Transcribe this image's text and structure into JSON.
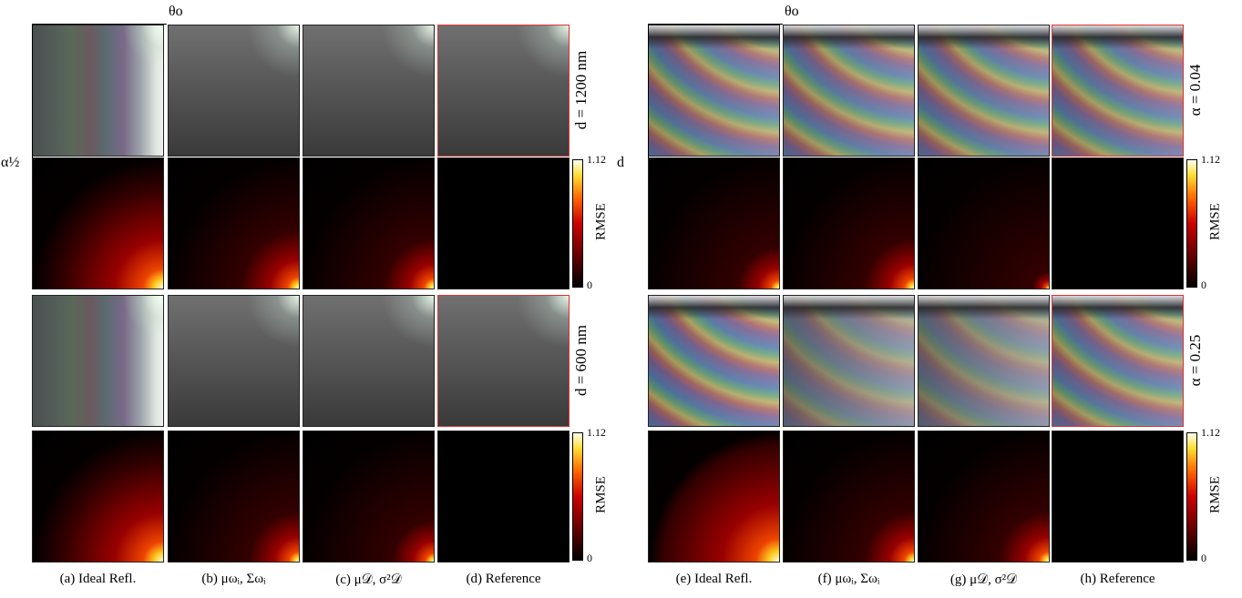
{
  "figures": [
    {
      "axis_top": "θo",
      "axis_side": "α½",
      "captions": [
        "(a) Ideal Refl.",
        "(b) μωᵢ, Σωᵢ",
        "(c) μ𝒟, σ²𝒟",
        "(d) Reference"
      ],
      "row_labels": [
        "d = 1200 nm",
        "d = 600 nm"
      ]
    },
    {
      "axis_top": "θo",
      "axis_side": "d",
      "captions": [
        "(e) Ideal Refl.",
        "(f) μωᵢ, Σωᵢ",
        "(g) μ𝒟, σ²𝒟",
        "(h) Reference"
      ],
      "row_labels": [
        "α = 0.04",
        "α = 0.25"
      ]
    }
  ],
  "colorbar": {
    "max": 1.12,
    "min": 0,
    "label": "RMSE"
  }
}
